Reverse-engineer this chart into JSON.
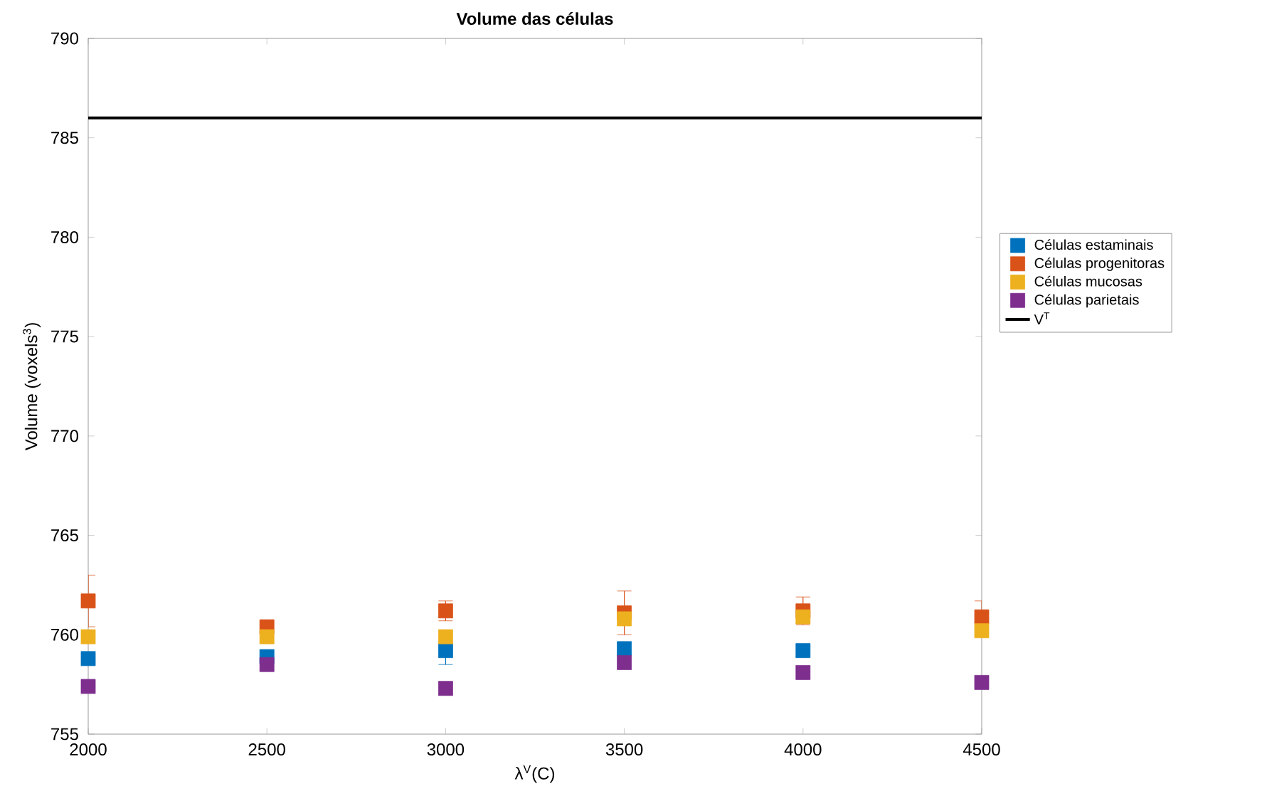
{
  "chart_data": {
    "type": "scatter",
    "title": "Volume das células",
    "xlabel": "λ$^{V}$(C)",
    "ylabel": "Volume (voxels$^{3}$)",
    "x": [
      2000,
      2500,
      3000,
      3500,
      4000,
      4500
    ],
    "series": [
      {
        "name": "Células estaminais",
        "color": "#0072bd",
        "values": [
          758.8,
          758.9,
          759.2,
          759.3,
          759.2,
          null
        ],
        "errors": [
          0.3,
          0.3,
          0.7,
          0.3,
          0.3,
          null
        ]
      },
      {
        "name": "Células progenitoras",
        "color": "#d95319",
        "values": [
          761.7,
          760.4,
          761.2,
          761.1,
          761.2,
          760.9
        ],
        "errors": [
          1.3,
          0.3,
          0.5,
          1.1,
          0.7,
          0.8
        ]
      },
      {
        "name": "Células mucosas",
        "color": "#edb120",
        "values": [
          759.9,
          759.9,
          759.9,
          760.8,
          760.9,
          760.2
        ],
        "errors": [
          0.3,
          0.3,
          0.3,
          null,
          0.3,
          0.3
        ]
      },
      {
        "name": "Células parietais",
        "color": "#7e2f8e",
        "values": [
          757.4,
          758.5,
          757.3,
          758.6,
          758.1,
          757.6
        ],
        "errors": [
          0.3,
          0.3,
          0.3,
          0.3,
          0.3,
          0.3
        ]
      },
      {
        "name": "V$^{T}$",
        "type": "line",
        "marker": "none",
        "color": "#000000",
        "x": [
          2000,
          4500
        ],
        "values": [
          786,
          786
        ]
      }
    ],
    "xlim": [
      2000,
      4500
    ],
    "ylim": [
      755,
      790
    ],
    "xticks": [
      2000,
      2500,
      3000,
      3500,
      4000,
      4500
    ],
    "yticks": [
      755,
      760,
      765,
      770,
      775,
      780,
      785,
      790
    ],
    "marker": "square",
    "grid": false,
    "legend": "right"
  }
}
